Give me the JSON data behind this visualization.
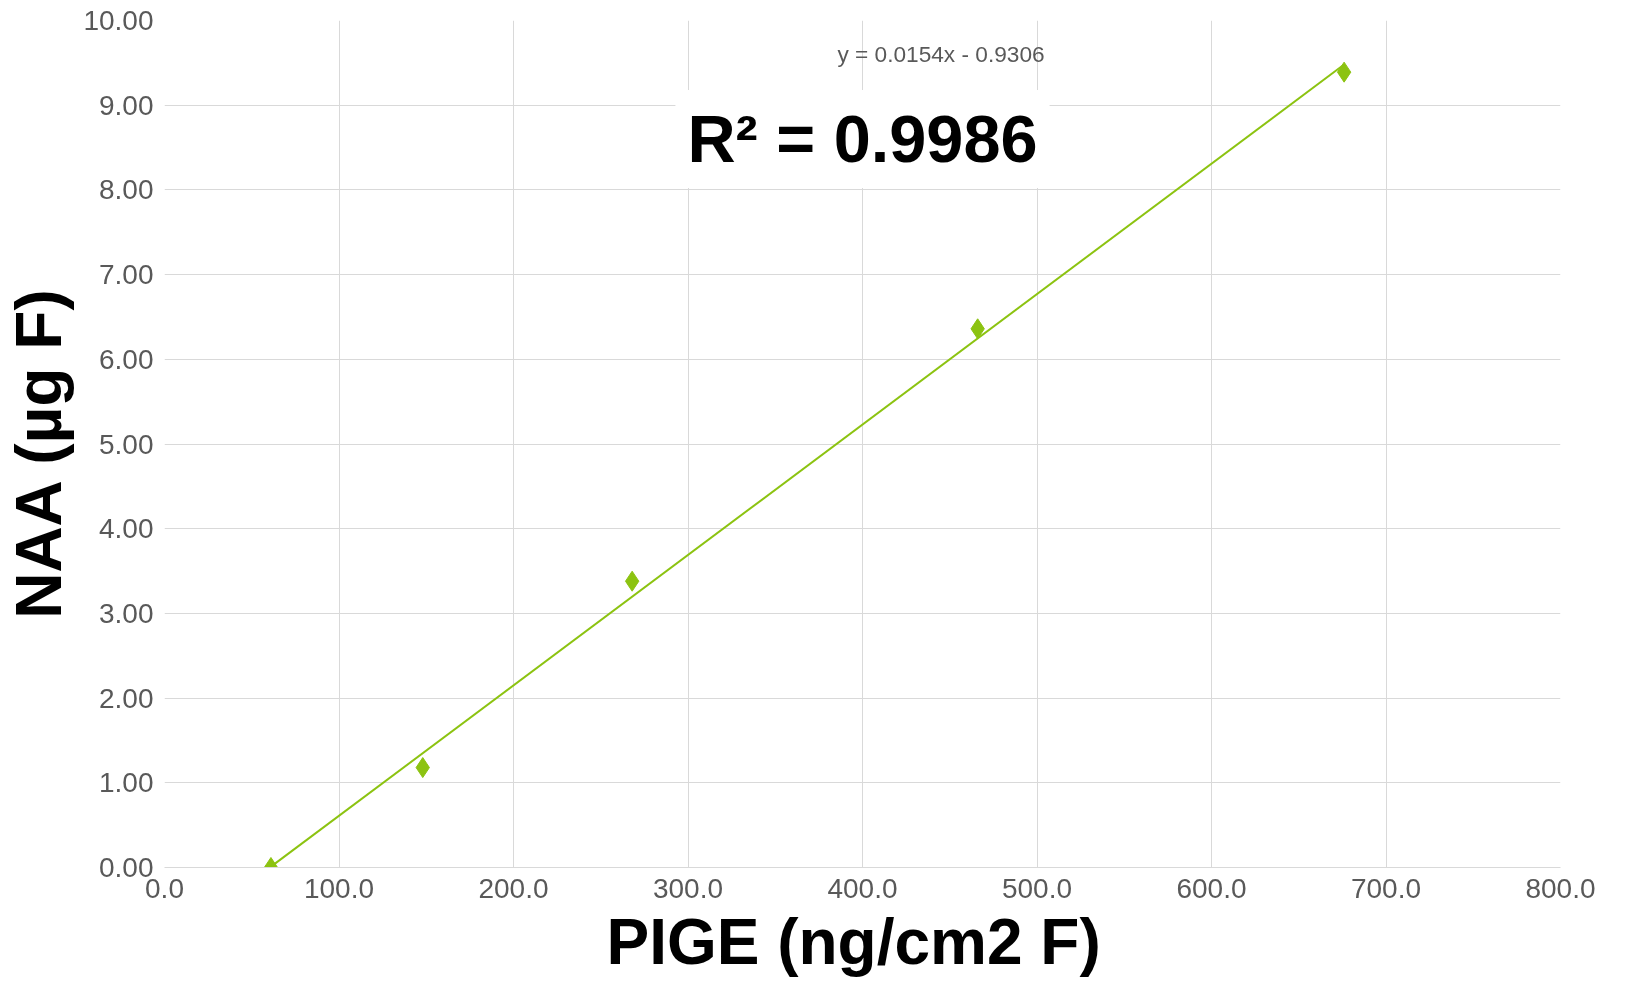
{
  "chart_data": {
    "type": "scatter",
    "xlabel": "PIGE  (ng/cm2 F)",
    "ylabel": "NAA  (µg F)",
    "annotations": [
      "y = 0.0154x - 0.9306",
      "R² = 0.9986"
    ],
    "series": [
      {
        "color": "#8cc311",
        "x": [
          61,
          148,
          268,
          466,
          676
        ],
        "values": [
          0.0,
          1.18,
          3.38,
          6.36,
          9.39
        ],
        "marker": "diamond"
      },
      {
        "type": "line",
        "color": "#8cc311",
        "x": [
          61,
          676
        ],
        "values": [
          0.01,
          9.48
        ],
        "marker": "none"
      }
    ],
    "xlim": [
      0,
      800
    ],
    "ylim": [
      0,
      10
    ],
    "xticks": [
      {
        "value": 0,
        "label": "0.0"
      },
      {
        "value": 100,
        "label": "100.0"
      },
      {
        "value": 200,
        "label": "200.0"
      },
      {
        "value": 300,
        "label": "300.0"
      },
      {
        "value": 400,
        "label": "400.0"
      },
      {
        "value": 500,
        "label": "500.0"
      },
      {
        "value": 600,
        "label": "600.0"
      },
      {
        "value": 700,
        "label": "700.0"
      },
      {
        "value": 800,
        "label": "800.0"
      }
    ],
    "yticks": [
      {
        "value": 0,
        "label": "0.00"
      },
      {
        "value": 1,
        "label": "1.00"
      },
      {
        "value": 2,
        "label": "2.00"
      },
      {
        "value": 3,
        "label": "3.00"
      },
      {
        "value": 4,
        "label": "4.00"
      },
      {
        "value": 5,
        "label": "5.00"
      },
      {
        "value": 6,
        "label": "6.00"
      },
      {
        "value": 7,
        "label": "7.00"
      },
      {
        "value": 8,
        "label": "8.00"
      },
      {
        "value": 9,
        "label": "9.00"
      },
      {
        "value": 10,
        "label": "10.00"
      }
    ],
    "grid": true
  }
}
